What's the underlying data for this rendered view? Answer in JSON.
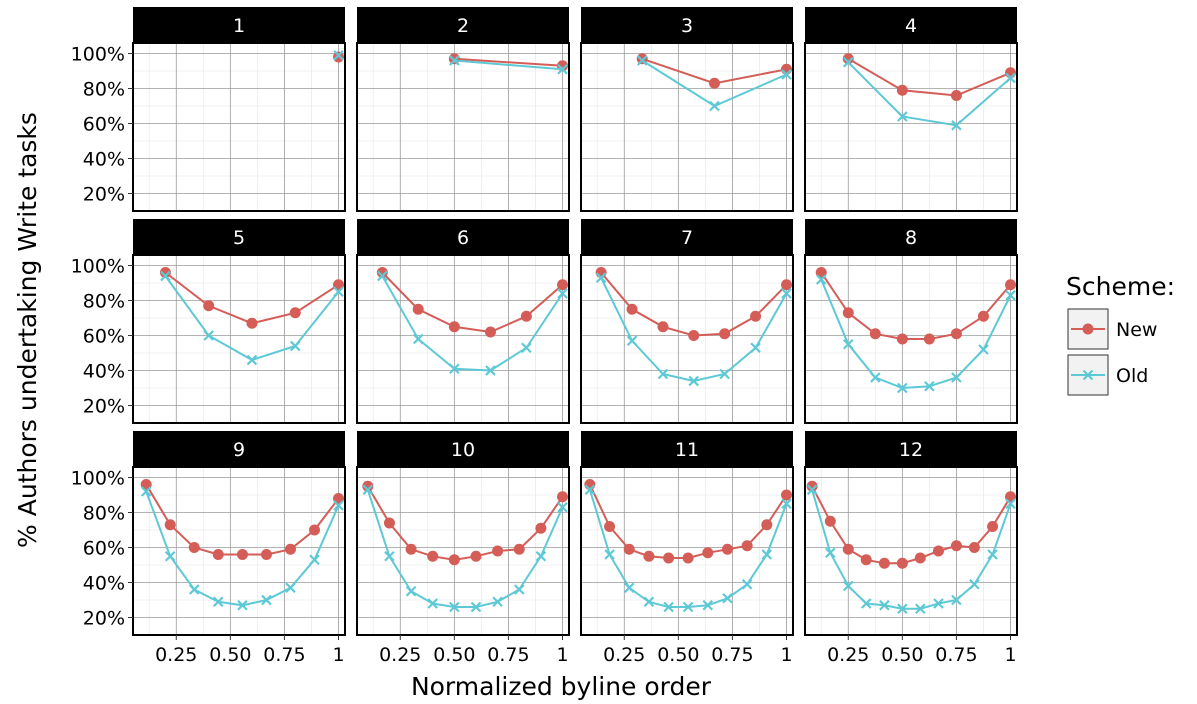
{
  "chart_data": {
    "type": "line",
    "xlabel": "Normalized byline order",
    "ylabel": "% Authors undertaking Write tasks",
    "xlim": [
      0.05,
      1.03
    ],
    "ylim": [
      0.1,
      1.06
    ],
    "x_ticks": [
      {
        "value": 0.25,
        "label": "0.25"
      },
      {
        "value": 0.5,
        "label": "0.50"
      },
      {
        "value": 0.75,
        "label": "0.75"
      },
      {
        "value": 1.0,
        "label": "1"
      }
    ],
    "y_ticks": [
      {
        "value": 0.2,
        "label": "20%"
      },
      {
        "value": 0.4,
        "label": "40%"
      },
      {
        "value": 0.6,
        "label": "60%"
      },
      {
        "value": 0.8,
        "label": "80%"
      },
      {
        "value": 1.0,
        "label": "100%"
      }
    ],
    "grid": true,
    "legend": {
      "title": "Scheme:",
      "position": "right",
      "items": [
        {
          "name": "New",
          "color": "#d45d57",
          "marker": "circle"
        },
        {
          "name": "Old",
          "color": "#5ec9d6",
          "marker": "x"
        }
      ]
    },
    "panels": [
      {
        "label": "1",
        "series": [
          {
            "name": "New",
            "x": [
              1.0
            ],
            "y": [
              0.98
            ]
          },
          {
            "name": "Old",
            "x": [
              1.0
            ],
            "y": [
              0.99
            ]
          }
        ]
      },
      {
        "label": "2",
        "series": [
          {
            "name": "New",
            "x": [
              0.5,
              1.0
            ],
            "y": [
              0.97,
              0.93
            ]
          },
          {
            "name": "Old",
            "x": [
              0.5,
              1.0
            ],
            "y": [
              0.96,
              0.91
            ]
          }
        ]
      },
      {
        "label": "3",
        "series": [
          {
            "name": "New",
            "x": [
              0.333,
              0.667,
              1.0
            ],
            "y": [
              0.97,
              0.83,
              0.91
            ]
          },
          {
            "name": "Old",
            "x": [
              0.333,
              0.667,
              1.0
            ],
            "y": [
              0.96,
              0.7,
              0.88
            ]
          }
        ]
      },
      {
        "label": "4",
        "series": [
          {
            "name": "New",
            "x": [
              0.25,
              0.5,
              0.75,
              1.0
            ],
            "y": [
              0.97,
              0.79,
              0.76,
              0.89
            ]
          },
          {
            "name": "Old",
            "x": [
              0.25,
              0.5,
              0.75,
              1.0
            ],
            "y": [
              0.95,
              0.64,
              0.59,
              0.86
            ]
          }
        ]
      },
      {
        "label": "5",
        "series": [
          {
            "name": "New",
            "x": [
              0.2,
              0.4,
              0.6,
              0.8,
              1.0
            ],
            "y": [
              0.96,
              0.77,
              0.67,
              0.73,
              0.89
            ]
          },
          {
            "name": "Old",
            "x": [
              0.2,
              0.4,
              0.6,
              0.8,
              1.0
            ],
            "y": [
              0.94,
              0.6,
              0.46,
              0.54,
              0.85
            ]
          }
        ]
      },
      {
        "label": "6",
        "series": [
          {
            "name": "New",
            "x": [
              0.167,
              0.333,
              0.5,
              0.667,
              0.833,
              1.0
            ],
            "y": [
              0.96,
              0.75,
              0.65,
              0.62,
              0.71,
              0.89
            ]
          },
          {
            "name": "Old",
            "x": [
              0.167,
              0.333,
              0.5,
              0.667,
              0.833,
              1.0
            ],
            "y": [
              0.94,
              0.58,
              0.41,
              0.4,
              0.53,
              0.84
            ]
          }
        ]
      },
      {
        "label": "7",
        "series": [
          {
            "name": "New",
            "x": [
              0.143,
              0.286,
              0.429,
              0.571,
              0.714,
              0.857,
              1.0
            ],
            "y": [
              0.96,
              0.75,
              0.65,
              0.6,
              0.61,
              0.71,
              0.89
            ]
          },
          {
            "name": "Old",
            "x": [
              0.143,
              0.286,
              0.429,
              0.571,
              0.714,
              0.857,
              1.0
            ],
            "y": [
              0.93,
              0.57,
              0.38,
              0.34,
              0.38,
              0.53,
              0.84
            ]
          }
        ]
      },
      {
        "label": "8",
        "series": [
          {
            "name": "New",
            "x": [
              0.125,
              0.25,
              0.375,
              0.5,
              0.625,
              0.75,
              0.875,
              1.0
            ],
            "y": [
              0.96,
              0.73,
              0.61,
              0.58,
              0.58,
              0.61,
              0.71,
              0.89
            ]
          },
          {
            "name": "Old",
            "x": [
              0.125,
              0.25,
              0.375,
              0.5,
              0.625,
              0.75,
              0.875,
              1.0
            ],
            "y": [
              0.92,
              0.55,
              0.36,
              0.3,
              0.31,
              0.36,
              0.52,
              0.83
            ]
          }
        ]
      },
      {
        "label": "9",
        "series": [
          {
            "name": "New",
            "x": [
              0.111,
              0.222,
              0.333,
              0.444,
              0.556,
              0.667,
              0.778,
              0.889,
              1.0
            ],
            "y": [
              0.96,
              0.73,
              0.6,
              0.56,
              0.56,
              0.56,
              0.59,
              0.7,
              0.88
            ]
          },
          {
            "name": "Old",
            "x": [
              0.111,
              0.222,
              0.333,
              0.444,
              0.556,
              0.667,
              0.778,
              0.889,
              1.0
            ],
            "y": [
              0.92,
              0.55,
              0.36,
              0.29,
              0.27,
              0.3,
              0.37,
              0.53,
              0.84
            ]
          }
        ]
      },
      {
        "label": "10",
        "series": [
          {
            "name": "New",
            "x": [
              0.1,
              0.2,
              0.3,
              0.4,
              0.5,
              0.6,
              0.7,
              0.8,
              0.9,
              1.0
            ],
            "y": [
              0.95,
              0.74,
              0.59,
              0.55,
              0.53,
              0.55,
              0.58,
              0.59,
              0.71,
              0.89
            ]
          },
          {
            "name": "Old",
            "x": [
              0.1,
              0.2,
              0.3,
              0.4,
              0.5,
              0.6,
              0.7,
              0.8,
              0.9,
              1.0
            ],
            "y": [
              0.93,
              0.55,
              0.35,
              0.28,
              0.26,
              0.26,
              0.29,
              0.36,
              0.55,
              0.83
            ]
          }
        ]
      },
      {
        "label": "11",
        "series": [
          {
            "name": "New",
            "x": [
              0.091,
              0.182,
              0.273,
              0.364,
              0.455,
              0.545,
              0.636,
              0.727,
              0.818,
              0.909,
              1.0
            ],
            "y": [
              0.96,
              0.72,
              0.59,
              0.55,
              0.54,
              0.54,
              0.57,
              0.59,
              0.61,
              0.73,
              0.9
            ]
          },
          {
            "name": "Old",
            "x": [
              0.091,
              0.182,
              0.273,
              0.364,
              0.455,
              0.545,
              0.636,
              0.727,
              0.818,
              0.909,
              1.0
            ],
            "y": [
              0.93,
              0.56,
              0.37,
              0.29,
              0.26,
              0.26,
              0.27,
              0.31,
              0.39,
              0.56,
              0.85
            ]
          }
        ]
      },
      {
        "label": "12",
        "series": [
          {
            "name": "New",
            "x": [
              0.083,
              0.167,
              0.25,
              0.333,
              0.417,
              0.5,
              0.583,
              0.667,
              0.75,
              0.833,
              0.917,
              1.0
            ],
            "y": [
              0.95,
              0.75,
              0.59,
              0.53,
              0.51,
              0.51,
              0.54,
              0.58,
              0.61,
              0.6,
              0.72,
              0.89
            ]
          },
          {
            "name": "Old",
            "x": [
              0.083,
              0.167,
              0.25,
              0.333,
              0.417,
              0.5,
              0.583,
              0.667,
              0.75,
              0.833,
              0.917,
              1.0
            ],
            "y": [
              0.93,
              0.57,
              0.38,
              0.28,
              0.27,
              0.25,
              0.25,
              0.28,
              0.3,
              0.39,
              0.56,
              0.85
            ]
          }
        ]
      }
    ]
  }
}
